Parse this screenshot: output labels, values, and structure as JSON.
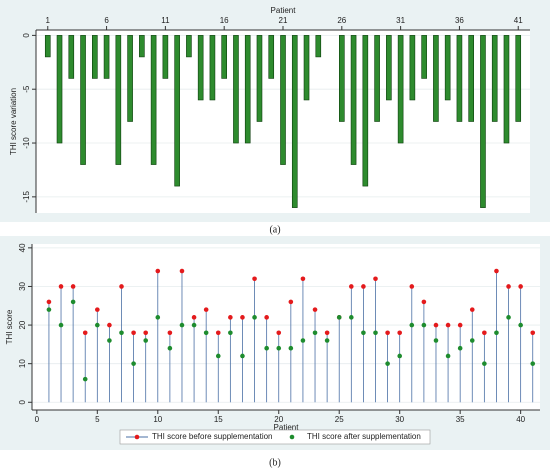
{
  "chart_data": [
    {
      "type": "bar",
      "caption": "(a)",
      "xlabel": "Patient",
      "ylabel": "THI score variation",
      "x": [
        1,
        2,
        3,
        4,
        5,
        6,
        7,
        8,
        9,
        10,
        11,
        12,
        13,
        14,
        15,
        16,
        17,
        18,
        19,
        20,
        21,
        22,
        23,
        24,
        25,
        26,
        27,
        28,
        29,
        30,
        31,
        32,
        33,
        34,
        35,
        36,
        37,
        38,
        39,
        40,
        41
      ],
      "values": [
        -2,
        -10,
        -4,
        -12,
        -4,
        -4,
        -12,
        -8,
        -2,
        -12,
        -4,
        -14,
        -2,
        -6,
        -6,
        -4,
        -10,
        -10,
        -8,
        -4,
        -12,
        -16,
        -6,
        -2,
        0,
        -8,
        -12,
        -14,
        -8,
        -6,
        -10,
        -6,
        -4,
        -8,
        -6,
        -8,
        -8,
        -16,
        -8,
        -10,
        -8
      ],
      "color": "#2e8b2e",
      "xaxis_position": "top",
      "xlim": [
        0,
        42
      ],
      "xticks": [
        1,
        6,
        11,
        16,
        21,
        26,
        31,
        36,
        41
      ],
      "ylim": [
        -16.5,
        0.5
      ],
      "yticks": [
        0,
        -5,
        -10,
        -15
      ],
      "grid": true
    },
    {
      "type": "dropline",
      "caption": "(b)",
      "xlabel": "Patient",
      "ylabel": "THI score",
      "x": [
        1,
        2,
        3,
        4,
        5,
        6,
        7,
        8,
        9,
        10,
        11,
        12,
        13,
        14,
        15,
        16,
        17,
        18,
        19,
        20,
        21,
        22,
        23,
        24,
        25,
        26,
        27,
        28,
        29,
        30,
        31,
        32,
        33,
        34,
        35,
        36,
        37,
        38,
        39,
        40,
        41
      ],
      "series": [
        {
          "name": "THI score before supplementation",
          "color": "#e41a1c",
          "line_color": "#4a6fa5",
          "values": [
            26,
            30,
            30,
            18,
            24,
            20,
            30,
            18,
            18,
            34,
            18,
            34,
            22,
            24,
            18,
            22,
            22,
            32,
            22,
            18,
            26,
            32,
            24,
            18,
            22,
            30,
            30,
            32,
            18,
            18,
            30,
            26,
            20,
            20,
            20,
            24,
            18,
            34,
            30,
            30,
            18
          ]
        },
        {
          "name": "THI score after supplementation",
          "color": "#1e8c2e",
          "values": [
            24,
            20,
            26,
            6,
            20,
            16,
            18,
            10,
            16,
            22,
            14,
            20,
            20,
            18,
            12,
            18,
            12,
            22,
            14,
            14,
            14,
            16,
            18,
            16,
            22,
            22,
            18,
            18,
            10,
            12,
            20,
            20,
            16,
            12,
            14,
            16,
            10,
            18,
            22,
            20,
            10
          ]
        }
      ],
      "xlim": [
        -0.4,
        41.6
      ],
      "xticks": [
        0,
        5,
        10,
        15,
        20,
        25,
        30,
        35,
        40
      ],
      "ylim": [
        -2,
        41
      ],
      "yticks": [
        0,
        10,
        20,
        30,
        40
      ],
      "grid": true,
      "legend": "bottom"
    }
  ]
}
